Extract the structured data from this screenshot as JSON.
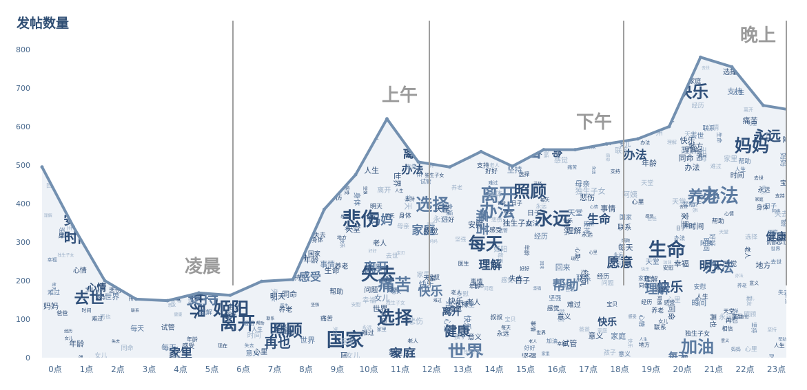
{
  "chart_data": {
    "type": "area",
    "title": "发帖数量",
    "x": [
      "0点",
      "1点",
      "2点",
      "3点",
      "4点",
      "5点",
      "6点",
      "7点",
      "8点",
      "9点",
      "10点",
      "11点",
      "12点",
      "13点",
      "14点",
      "15点",
      "16点",
      "17点",
      "18点",
      "19点",
      "20点",
      "21点",
      "22点",
      "23点"
    ],
    "values": [
      495,
      340,
      200,
      152,
      148,
      168,
      162,
      198,
      203,
      385,
      475,
      620,
      508,
      495,
      535,
      497,
      540,
      540,
      555,
      568,
      600,
      780,
      755,
      655
    ],
    "ylim": [
      0,
      800
    ],
    "yticks": [
      0,
      100,
      200,
      300,
      400,
      500,
      600,
      700,
      800
    ],
    "grid": false,
    "periods": [
      {
        "label": "凌晨",
        "start_hour": 0,
        "end_hour": 6
      },
      {
        "label": "上午",
        "start_hour": 6,
        "end_hour": 12
      },
      {
        "label": "下午",
        "start_hour": 12,
        "end_hour": 18
      },
      {
        "label": "晚上",
        "start_hour": 18,
        "end_hour": 24
      }
    ]
  },
  "colors": {
    "line": "#7390b0",
    "fill": "#eef2f7",
    "word_dark": "#2f4f79",
    "word_mid": "#5b7aa0",
    "word_light": "#9fb3ca",
    "period_label": "#9a9a9a",
    "divider": "#9e9e9e",
    "title": "#2e4d73"
  },
  "word_cloud": [
    "痛苦",
    "失去",
    "阿姨",
    "家庭",
    "坚强",
    "离开",
    "时间",
    "永远",
    "快乐",
    "好好",
    "人生",
    "每天",
    "天堂",
    "老人",
    "帮助",
    "照顾",
    "宝贝",
    "加油",
    "回来",
    "幸福",
    "思念",
    "心情",
    "生命",
    "事情",
    "问题",
    "朋友",
    "经历",
    "母亲",
    "医生",
    "健康",
    "办法",
    "意义",
    "身体",
    "同命",
    "心里",
    "日子",
    "相信",
    "理解",
    "难过",
    "愿意",
    "地方",
    "再也",
    "支持",
    "姬阳",
    "家里",
    "去世",
    "叔叔",
    "安慰",
    "坚持",
    "选择",
    "感受",
    "世界",
    "联系",
    "试管",
    "年龄",
    "悲伤",
    "女儿",
    "独生子女",
    "国家",
    "养老",
    "现在",
    "孩子",
    "明天",
    "妈妈",
    "爸爸",
    "感觉"
  ]
}
